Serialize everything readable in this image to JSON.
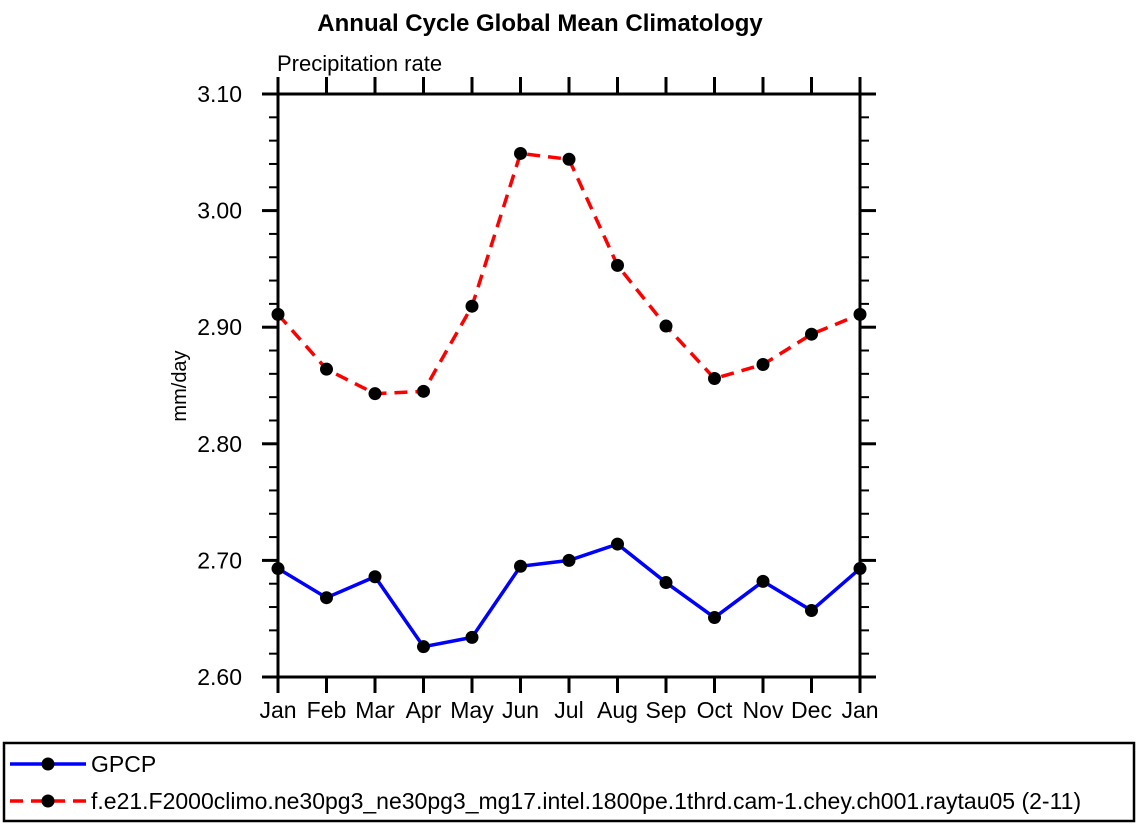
{
  "page": {
    "background": "#ffffff"
  },
  "chart_data": {
    "type": "line",
    "title": "Annual Cycle Global Mean Climatology",
    "subtitle": "Precipitation rate",
    "ylabel": "mm/day",
    "categories": [
      "Jan",
      "Feb",
      "Mar",
      "Apr",
      "May",
      "Jun",
      "Jul",
      "Aug",
      "Sep",
      "Oct",
      "Nov",
      "Dec",
      "Jan"
    ],
    "ylim": [
      2.6,
      3.1
    ],
    "ytick_major": 0.1,
    "ytick_minor": 0.02,
    "ytick_labels": [
      "2.60",
      "2.70",
      "2.80",
      "2.90",
      "3.00",
      "3.10"
    ],
    "grid": false,
    "legend_position": "bottom-box",
    "axis_color": "#000000",
    "series": [
      {
        "name": "GPCP",
        "color": "#0000ff",
        "line_style": "solid",
        "marker": "filled-circle",
        "marker_color": "#000000",
        "values": [
          2.693,
          2.668,
          2.686,
          2.626,
          2.634,
          2.695,
          2.7,
          2.714,
          2.681,
          2.651,
          2.682,
          2.657,
          2.693
        ]
      },
      {
        "name": "f.e21.F2000climo.ne30pg3_ne30pg3_mg17.intel.1800pe.1thrd.cam-1.chey.ch001.raytau05 (2-11)",
        "color": "#ff0000",
        "line_style": "dashed",
        "marker": "filled-circle",
        "marker_color": "#000000",
        "values": [
          2.911,
          2.864,
          2.843,
          2.845,
          2.918,
          3.049,
          3.044,
          2.953,
          2.901,
          2.856,
          2.868,
          2.894,
          2.911
        ]
      }
    ]
  }
}
